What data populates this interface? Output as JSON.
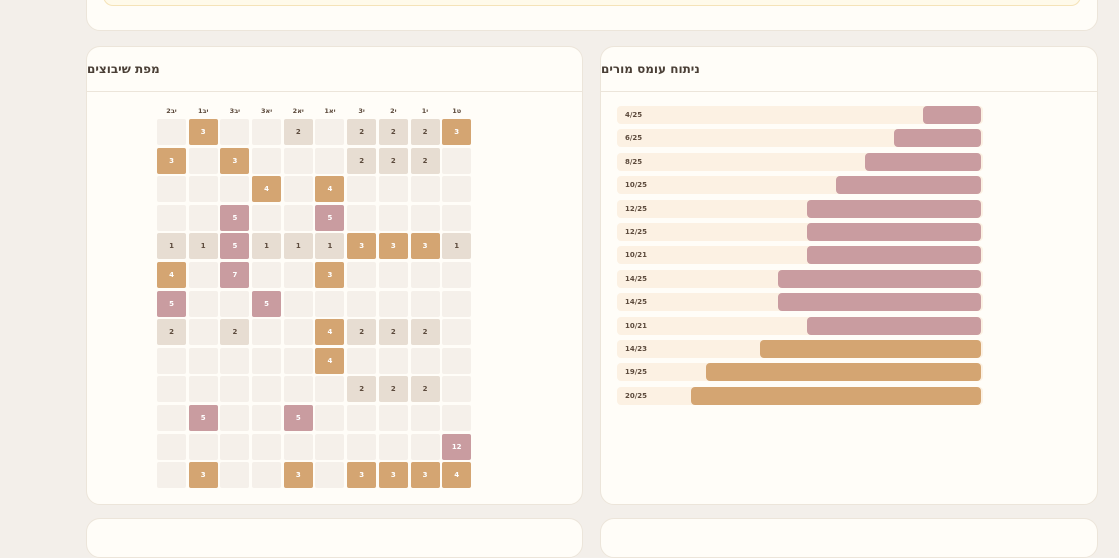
{
  "right_panel": {
    "title": "ניתוח עומס מורים",
    "bars": [
      {
        "label": "4/25",
        "fraction": 0.16,
        "color": "#c99ca0"
      },
      {
        "label": "6/25",
        "fraction": 0.24,
        "color": "#c99ca0"
      },
      {
        "label": "8/25",
        "fraction": 0.32,
        "color": "#c99ca0"
      },
      {
        "label": "10/25",
        "fraction": 0.4,
        "color": "#c99ca0"
      },
      {
        "label": "12/25",
        "fraction": 0.48,
        "color": "#c99ca0"
      },
      {
        "label": "12/25",
        "fraction": 0.48,
        "color": "#c99ca0"
      },
      {
        "label": "10/21",
        "fraction": 0.48,
        "color": "#c99ca0"
      },
      {
        "label": "14/25",
        "fraction": 0.56,
        "color": "#c99ca0"
      },
      {
        "label": "14/25",
        "fraction": 0.56,
        "color": "#c99ca0"
      },
      {
        "label": "10/21",
        "fraction": 0.48,
        "color": "#c99ca0"
      },
      {
        "label": "14/23",
        "fraction": 0.61,
        "color": "#d4a572"
      },
      {
        "label": "19/25",
        "fraction": 0.76,
        "color": "#d4a572"
      },
      {
        "label": "20/25",
        "fraction": 0.8,
        "color": "#d4a572"
      }
    ]
  },
  "left_panel": {
    "title": "מפת שיבוצים",
    "columns": [
      "יב2",
      "יב1",
      "יב3",
      "יא3",
      "יא2",
      "יא1",
      "י3",
      "י2",
      "י1",
      "ט1"
    ],
    "rows": [
      [
        "",
        "o:3",
        "",
        "",
        "b:2",
        "",
        "b:2",
        "b:2",
        "b:2",
        "o:3"
      ],
      [
        "o:3",
        "",
        "o:3",
        "",
        "",
        "",
        "b:2",
        "b:2",
        "b:2",
        ""
      ],
      [
        "",
        "",
        "",
        "o:4",
        "",
        "o:4",
        "",
        "",
        "",
        ""
      ],
      [
        "",
        "",
        "p:5",
        "",
        "",
        "p:5",
        "",
        "",
        "",
        ""
      ],
      [
        "b:1",
        "b:1",
        "p:5",
        "b:1",
        "b:1",
        "b:1",
        "o:3",
        "o:3",
        "o:3",
        "b:1"
      ],
      [
        "o:4",
        "",
        "p:7",
        "",
        "",
        "o:3",
        "",
        "",
        "",
        ""
      ],
      [
        "p:5",
        "",
        "",
        "p:5",
        "",
        "",
        "",
        "",
        "",
        ""
      ],
      [
        "b:2",
        "",
        "b:2",
        "",
        "",
        "o:4",
        "b:2",
        "b:2",
        "b:2",
        ""
      ],
      [
        "",
        "",
        "",
        "",
        "",
        "o:4",
        "",
        "",
        "",
        ""
      ],
      [
        "",
        "",
        "",
        "",
        "",
        "",
        "b:2",
        "b:2",
        "b:2",
        ""
      ],
      [
        "",
        "p:5",
        "",
        "",
        "p:5",
        "",
        "",
        "",
        "",
        ""
      ],
      [
        "",
        "",
        "",
        "",
        "",
        "",
        "",
        "",
        "",
        "p:12"
      ],
      [
        "",
        "o:3",
        "",
        "",
        "o:3",
        "",
        "o:3",
        "o:3",
        "o:3",
        "o:4"
      ]
    ]
  }
}
